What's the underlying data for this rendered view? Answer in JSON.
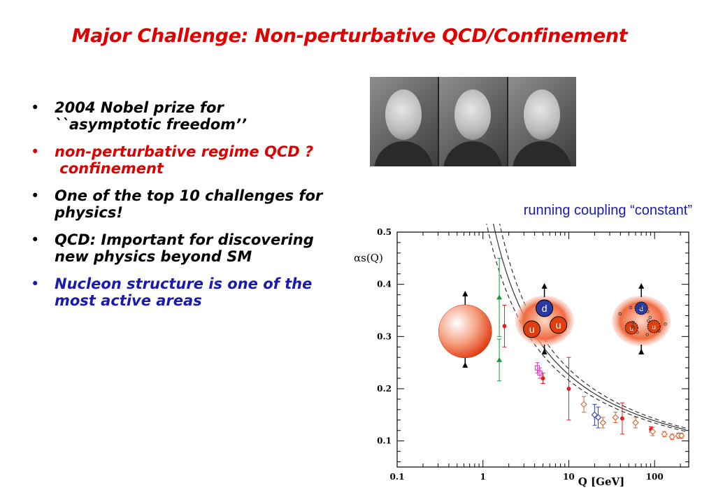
{
  "slide": {
    "title": "Major Challenge:  Non-perturbative QCD/Confinement",
    "bullets": [
      {
        "lines": [
          "2004 Nobel prize for",
          "``asymptotic freedom’’"
        ],
        "color": "#000000"
      },
      {
        "lines": [
          "non-perturbative regime QCD ?",
          " confinement"
        ],
        "color": "#e00000"
      },
      {
        "lines": [
          "One of the top 10 challenges for",
          "physics!"
        ],
        "color": "#000000"
      },
      {
        "lines": [
          "QCD: Important for discovering",
          "new physics beyond SM"
        ],
        "color": "#000000"
      },
      {
        "lines": [
          "Nucleon structure is one of  the",
          "most active areas"
        ],
        "color": "#1a1ab0"
      }
    ],
    "bullet_glyph": "•",
    "caption": "running coupling “constant”"
  },
  "chart_data": {
    "type": "scatter",
    "x_scale": "log",
    "xlim": [
      0.1,
      250
    ],
    "ylim": [
      0.05,
      0.5
    ],
    "xlabel": "Q [GeV]",
    "ylabel": "αs(Q)",
    "x_ticks": [
      0.1,
      1,
      10,
      100
    ],
    "x_tick_labels": [
      "0.1",
      "1",
      "10",
      "100"
    ],
    "y_ticks": [
      0.1,
      0.2,
      0.3,
      0.4,
      0.5
    ],
    "y_tick_labels": [
      "0.1",
      "0.2",
      "0.3",
      "0.4",
      "0.5"
    ],
    "points": [
      {
        "x": 1.55,
        "y": 0.375,
        "err": 0.075,
        "color": "#1a9a3a",
        "marker": "triangle"
      },
      {
        "x": 1.55,
        "y": 0.255,
        "err": 0.04,
        "color": "#1a9a3a",
        "marker": "triangle"
      },
      {
        "x": 1.78,
        "y": 0.32,
        "err": 0.04,
        "color": "#e02020",
        "marker": "circle"
      },
      {
        "x": 4.3,
        "y": 0.24,
        "err": 0.01,
        "color": "#e040c0",
        "marker": "square"
      },
      {
        "x": 4.6,
        "y": 0.23,
        "err": 0.01,
        "color": "#e040c0",
        "marker": "square"
      },
      {
        "x": 5.0,
        "y": 0.22,
        "err": 0.01,
        "color": "#e02020",
        "marker": "circle"
      },
      {
        "x": 10.0,
        "y": 0.2,
        "err": 0.06,
        "color": "#e02020",
        "marker": "circle"
      },
      {
        "x": 15.0,
        "y": 0.17,
        "err": 0.015,
        "color": "#e06030",
        "marker": "open-diamond"
      },
      {
        "x": 20.0,
        "y": 0.15,
        "err": 0.02,
        "color": "#3040c0",
        "marker": "open-diamond"
      },
      {
        "x": 22.0,
        "y": 0.145,
        "err": 0.02,
        "color": "#3040c0",
        "marker": "open-diamond"
      },
      {
        "x": 25.0,
        "y": 0.135,
        "err": 0.01,
        "color": "#e06030",
        "marker": "open-diamond"
      },
      {
        "x": 35.0,
        "y": 0.145,
        "err": 0.01,
        "color": "#e06030",
        "marker": "open-diamond"
      },
      {
        "x": 42.0,
        "y": 0.143,
        "err": 0.03,
        "color": "#e02020",
        "marker": "circle"
      },
      {
        "x": 60.0,
        "y": 0.135,
        "err": 0.01,
        "color": "#e06030",
        "marker": "open-diamond"
      },
      {
        "x": 91.0,
        "y": 0.122,
        "err": 0.005,
        "color": "#e02020",
        "marker": "circle"
      },
      {
        "x": 95.0,
        "y": 0.118,
        "err": 0.008,
        "color": "#e06030",
        "marker": "open-diamond"
      },
      {
        "x": 130.0,
        "y": 0.113,
        "err": 0.005,
        "color": "#e06030",
        "marker": "open-diamond"
      },
      {
        "x": 160.0,
        "y": 0.108,
        "err": 0.005,
        "color": "#e06030",
        "marker": "open-diamond"
      },
      {
        "x": 190.0,
        "y": 0.11,
        "err": 0.005,
        "color": "#e06030",
        "marker": "open-diamond"
      },
      {
        "x": 206.0,
        "y": 0.11,
        "err": 0.005,
        "color": "#e06030",
        "marker": "open-diamond"
      }
    ],
    "curves": [
      {
        "name": "central",
        "lambda": 0.27,
        "dash": "none"
      },
      {
        "name": "upper",
        "lambda": 0.32,
        "dash": "6,4"
      },
      {
        "name": "lower",
        "lambda": 0.225,
        "dash": "6,4"
      }
    ],
    "insets": [
      {
        "kind": "uniform-sphere",
        "at_x": 0.62,
        "at_y": 0.31
      },
      {
        "kind": "constituent-quarks",
        "quarks": [
          "d",
          "u",
          "u"
        ],
        "at_x": 5.2,
        "at_y": 0.33
      },
      {
        "kind": "partonic",
        "quarks": [
          "u",
          "u",
          "d"
        ],
        "at_x": 70,
        "at_y": 0.33
      }
    ]
  }
}
